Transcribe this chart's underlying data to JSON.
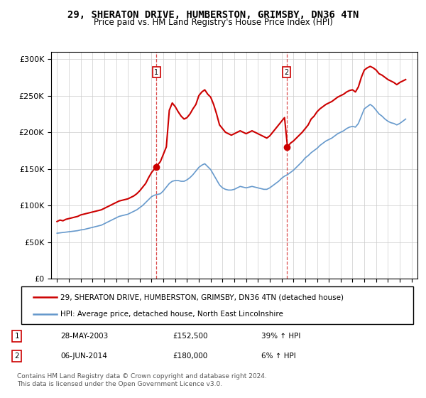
{
  "title": "29, SHERATON DRIVE, HUMBERSTON, GRIMSBY, DN36 4TN",
  "subtitle": "Price paid vs. HM Land Registry's House Price Index (HPI)",
  "legend_line1": "29, SHERATON DRIVE, HUMBERSTON, GRIMSBY, DN36 4TN (detached house)",
  "legend_line2": "HPI: Average price, detached house, North East Lincolnshire",
  "footnote": "Contains HM Land Registry data © Crown copyright and database right 2024.\nThis data is licensed under the Open Government Licence v3.0.",
  "transaction1_label": "1",
  "transaction1_date": "28-MAY-2003",
  "transaction1_price": "£152,500",
  "transaction1_change": "39% ↑ HPI",
  "transaction2_label": "2",
  "transaction2_date": "06-JUN-2014",
  "transaction2_price": "£180,000",
  "transaction2_change": "6% ↑ HPI",
  "price_color": "#cc0000",
  "hpi_color": "#6699cc",
  "marker1_x": 2003.4,
  "marker1_y": 152500,
  "marker2_x": 2014.43,
  "marker2_y": 180000,
  "ylim": [
    0,
    310000
  ],
  "xlim": [
    1994.5,
    2025.5
  ],
  "yticks": [
    0,
    50000,
    100000,
    150000,
    200000,
    250000,
    300000
  ],
  "ytick_labels": [
    "£0",
    "£50K",
    "£100K",
    "£150K",
    "£200K",
    "£250K",
    "£300K"
  ],
  "xticks": [
    1995,
    1996,
    1997,
    1998,
    1999,
    2000,
    2001,
    2002,
    2003,
    2004,
    2005,
    2006,
    2007,
    2008,
    2009,
    2010,
    2011,
    2012,
    2013,
    2014,
    2015,
    2016,
    2017,
    2018,
    2019,
    2020,
    2021,
    2022,
    2023,
    2024,
    2025
  ],
  "price_data": {
    "x": [
      1995.0,
      1995.25,
      1995.5,
      1995.75,
      1996.0,
      1996.25,
      1996.5,
      1996.75,
      1997.0,
      1997.25,
      1997.5,
      1997.75,
      1998.0,
      1998.25,
      1998.5,
      1998.75,
      1999.0,
      1999.25,
      1999.5,
      1999.75,
      2000.0,
      2000.25,
      2000.5,
      2000.75,
      2001.0,
      2001.25,
      2001.5,
      2001.75,
      2002.0,
      2002.25,
      2002.5,
      2002.75,
      2003.0,
      2003.25,
      2003.5,
      2003.75,
      2004.0,
      2004.25,
      2004.5,
      2004.75,
      2005.0,
      2005.25,
      2005.5,
      2005.75,
      2006.0,
      2006.25,
      2006.5,
      2006.75,
      2007.0,
      2007.25,
      2007.5,
      2007.75,
      2008.0,
      2008.25,
      2008.5,
      2008.75,
      2009.0,
      2009.25,
      2009.5,
      2009.75,
      2010.0,
      2010.25,
      2010.5,
      2010.75,
      2011.0,
      2011.25,
      2011.5,
      2011.75,
      2012.0,
      2012.25,
      2012.5,
      2012.75,
      2013.0,
      2013.25,
      2013.5,
      2013.75,
      2014.0,
      2014.25,
      2014.5,
      2014.75,
      2015.0,
      2015.25,
      2015.5,
      2015.75,
      2016.0,
      2016.25,
      2016.5,
      2016.75,
      2017.0,
      2017.25,
      2017.5,
      2017.75,
      2018.0,
      2018.25,
      2018.5,
      2018.75,
      2019.0,
      2019.25,
      2019.5,
      2019.75,
      2020.0,
      2020.25,
      2020.5,
      2020.75,
      2021.0,
      2021.25,
      2021.5,
      2021.75,
      2022.0,
      2022.25,
      2022.5,
      2022.75,
      2023.0,
      2023.25,
      2023.5,
      2023.75,
      2024.0,
      2024.25,
      2024.5
    ],
    "y": [
      78000,
      80000,
      79000,
      81000,
      82000,
      83000,
      84000,
      85000,
      87000,
      88000,
      89000,
      90000,
      91000,
      92000,
      93000,
      94000,
      96000,
      98000,
      100000,
      102000,
      104000,
      106000,
      107000,
      108000,
      109000,
      111000,
      113000,
      116000,
      120000,
      125000,
      130000,
      138000,
      145000,
      150000,
      155000,
      160000,
      170000,
      180000,
      230000,
      240000,
      235000,
      228000,
      222000,
      218000,
      220000,
      225000,
      232000,
      238000,
      250000,
      255000,
      258000,
      252000,
      248000,
      238000,
      225000,
      210000,
      205000,
      200000,
      198000,
      196000,
      198000,
      200000,
      202000,
      200000,
      198000,
      200000,
      202000,
      200000,
      198000,
      196000,
      194000,
      192000,
      195000,
      200000,
      205000,
      210000,
      215000,
      220000,
      180000,
      185000,
      188000,
      192000,
      196000,
      200000,
      205000,
      210000,
      218000,
      222000,
      228000,
      232000,
      235000,
      238000,
      240000,
      242000,
      245000,
      248000,
      250000,
      252000,
      255000,
      257000,
      258000,
      255000,
      262000,
      275000,
      285000,
      288000,
      290000,
      288000,
      285000,
      280000,
      278000,
      275000,
      272000,
      270000,
      268000,
      265000,
      268000,
      270000,
      272000
    ]
  },
  "hpi_data": {
    "x": [
      1995.0,
      1995.25,
      1995.5,
      1995.75,
      1996.0,
      1996.25,
      1996.5,
      1996.75,
      1997.0,
      1997.25,
      1997.5,
      1997.75,
      1998.0,
      1998.25,
      1998.5,
      1998.75,
      1999.0,
      1999.25,
      1999.5,
      1999.75,
      2000.0,
      2000.25,
      2000.5,
      2000.75,
      2001.0,
      2001.25,
      2001.5,
      2001.75,
      2002.0,
      2002.25,
      2002.5,
      2002.75,
      2003.0,
      2003.25,
      2003.5,
      2003.75,
      2004.0,
      2004.25,
      2004.5,
      2004.75,
      2005.0,
      2005.25,
      2005.5,
      2005.75,
      2006.0,
      2006.25,
      2006.5,
      2006.75,
      2007.0,
      2007.25,
      2007.5,
      2007.75,
      2008.0,
      2008.25,
      2008.5,
      2008.75,
      2009.0,
      2009.25,
      2009.5,
      2009.75,
      2010.0,
      2010.25,
      2010.5,
      2010.75,
      2011.0,
      2011.25,
      2011.5,
      2011.75,
      2012.0,
      2012.25,
      2012.5,
      2012.75,
      2013.0,
      2013.25,
      2013.5,
      2013.75,
      2014.0,
      2014.25,
      2014.5,
      2014.75,
      2015.0,
      2015.25,
      2015.5,
      2015.75,
      2016.0,
      2016.25,
      2016.5,
      2016.75,
      2017.0,
      2017.25,
      2017.5,
      2017.75,
      2018.0,
      2018.25,
      2018.5,
      2018.75,
      2019.0,
      2019.25,
      2019.5,
      2019.75,
      2020.0,
      2020.25,
      2020.5,
      2020.75,
      2021.0,
      2021.25,
      2021.5,
      2021.75,
      2022.0,
      2022.25,
      2022.5,
      2022.75,
      2023.0,
      2023.25,
      2023.5,
      2023.75,
      2024.0,
      2024.25,
      2024.5
    ],
    "y": [
      62000,
      62500,
      63000,
      63500,
      64000,
      64500,
      65000,
      65500,
      66500,
      67000,
      68000,
      69000,
      70000,
      71000,
      72000,
      73000,
      75000,
      77000,
      79000,
      81000,
      83000,
      85000,
      86000,
      87000,
      88000,
      90000,
      92000,
      94000,
      97000,
      100000,
      104000,
      108000,
      112000,
      114000,
      115000,
      116000,
      120000,
      125000,
      130000,
      133000,
      134000,
      134000,
      133000,
      133000,
      135000,
      138000,
      142000,
      147000,
      152000,
      155000,
      157000,
      153000,
      149000,
      142000,
      135000,
      128000,
      124000,
      122000,
      121000,
      121000,
      122000,
      124000,
      126000,
      125000,
      124000,
      125000,
      126000,
      125000,
      124000,
      123000,
      122000,
      122000,
      124000,
      127000,
      130000,
      133000,
      137000,
      140000,
      142000,
      145000,
      148000,
      152000,
      156000,
      160000,
      165000,
      168000,
      172000,
      175000,
      178000,
      182000,
      185000,
      188000,
      190000,
      192000,
      195000,
      198000,
      200000,
      202000,
      205000,
      207000,
      208000,
      207000,
      212000,
      222000,
      232000,
      235000,
      238000,
      235000,
      230000,
      225000,
      222000,
      218000,
      215000,
      213000,
      212000,
      210000,
      212000,
      215000,
      218000
    ]
  }
}
